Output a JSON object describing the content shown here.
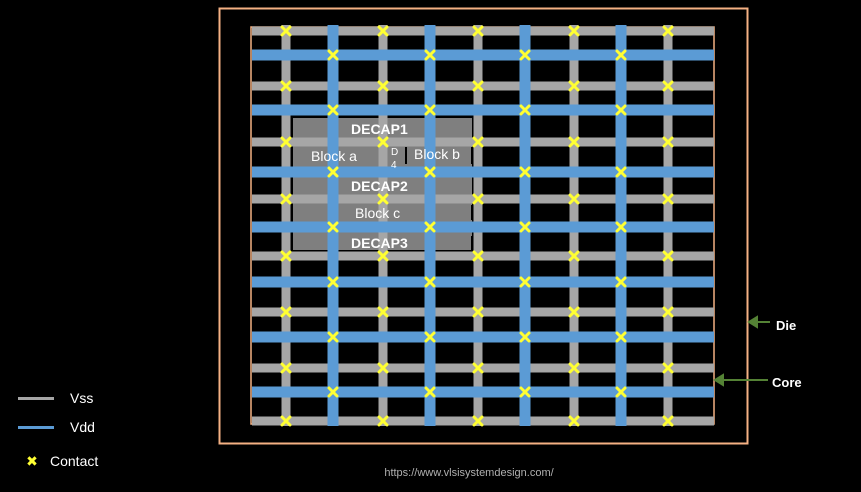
{
  "blocks": {
    "decap1": "DECAP1",
    "decap2": "DECAP2",
    "decap3": "DECAP3",
    "block_a": "Block a",
    "block_b": "Block b",
    "block_c": "Block c",
    "block_d_top": "D",
    "block_d_bottom": "4"
  },
  "labels": {
    "die": "Die",
    "core": "Core"
  },
  "legend": {
    "vss": "Vss",
    "vdd": "Vdd",
    "contact": "Contact"
  },
  "footer": {
    "url": "https://www.vlsisystemdesign.com/"
  },
  "colors": {
    "vss": "#a6a6a6",
    "vdd": "#5b9bd5",
    "contact": "#ffff33",
    "die_border": "#f4b183",
    "block": "#7f7f7f",
    "background": "#000000"
  }
}
